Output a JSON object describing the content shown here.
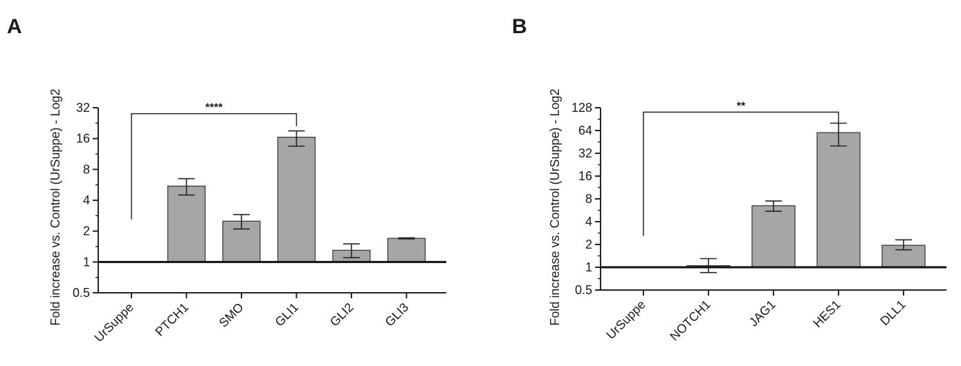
{
  "figure": {
    "panels": [
      "A",
      "B"
    ]
  },
  "chart_data": [
    {
      "type": "bar",
      "panel": "A",
      "title": "",
      "xlabel": "",
      "ylabel": "Fold increase vs. Control (UrSuppe) - Log2",
      "yscale": "log2",
      "ylim": [
        0.5,
        32
      ],
      "yticks": [
        0.5,
        1,
        2,
        4,
        8,
        16,
        32
      ],
      "ytick_labels": [
        "0.5",
        "1",
        "2",
        "4",
        "8",
        "16",
        "32"
      ],
      "baseline": 1,
      "bar_color": "#a6a6a6",
      "categories": [
        "UrSuppe",
        "PTCH1",
        "SMO",
        "GLI1",
        "GLI2",
        "GLI3"
      ],
      "values": [
        null,
        5.5,
        2.5,
        16.5,
        1.3,
        1.7
      ],
      "err_low": [
        null,
        4.5,
        2.1,
        13.5,
        1.1,
        1.68
      ],
      "err_high": [
        null,
        6.5,
        2.9,
        19.0,
        1.5,
        1.72
      ],
      "significance": {
        "from": "UrSuppe",
        "to": "GLI1",
        "label": "****",
        "at": 28
      }
    },
    {
      "type": "bar",
      "panel": "B",
      "title": "",
      "xlabel": "",
      "ylabel": "Fold increase vs. Control (UrSuppe) - Log2",
      "yscale": "log2",
      "ylim": [
        0.5,
        128
      ],
      "yticks": [
        0.5,
        1,
        2,
        4,
        8,
        16,
        32,
        64,
        128
      ],
      "ytick_labels": [
        "0.5",
        "1",
        "2",
        "4",
        "8",
        "16",
        "32",
        "64",
        "128"
      ],
      "baseline": 1,
      "bar_color": "#a6a6a6",
      "categories": [
        "UrSuppe",
        "NOTCH1",
        "JAG1",
        "HES1",
        "DLL1"
      ],
      "values": [
        null,
        1.05,
        6.5,
        60,
        1.95
      ],
      "err_low": [
        null,
        0.85,
        5.5,
        40,
        1.7
      ],
      "err_high": [
        null,
        1.3,
        7.5,
        80,
        2.3
      ],
      "significance": {
        "from": "UrSuppe",
        "to": "HES1",
        "label": "**",
        "at": 112
      }
    }
  ]
}
